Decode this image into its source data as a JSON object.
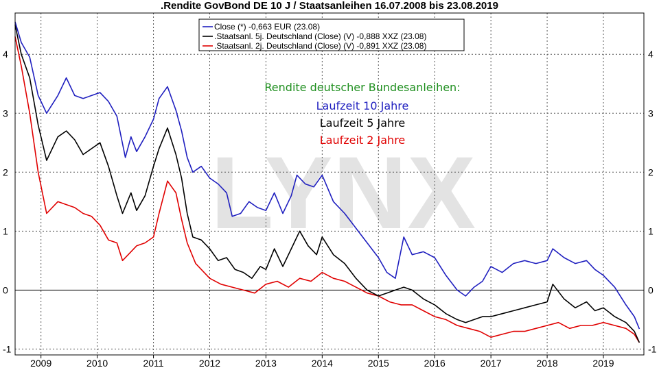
{
  "chart_data": {
    "type": "line",
    "title": ".Rendite GovBond DE 10 J / Staatsanleihen 16.07.2008 bis 23.08.2019",
    "xlabel": "",
    "ylabel": "",
    "xlim": [
      2008.54,
      2019.72
    ],
    "ylim": [
      -1.1,
      4.7
    ],
    "x_ticks": [
      2009,
      2010,
      2011,
      2012,
      2013,
      2014,
      2015,
      2016,
      2017,
      2018,
      2019
    ],
    "y_ticks": [
      4,
      3,
      2,
      1,
      0,
      -1
    ],
    "grid": true,
    "grid_style": "dashed",
    "zero_line": true,
    "legend_position": "top-center",
    "watermark": "LYNX",
    "colors": {
      "blue": "#1f1fbf",
      "black": "#000000",
      "red": "#e00000",
      "green": "#1f8f1f",
      "watermark": "#e3e3e3"
    },
    "annotations": [
      {
        "text": "Rendite deutscher Bundesanleihen:",
        "color": "#1f8f1f"
      },
      {
        "text": "Laufzeit 10 Jahre",
        "color": "#1f1fbf"
      },
      {
        "text": "Laufzeit 5 Jahre",
        "color": "#000000"
      },
      {
        "text": "Laufzeit 2 Jahre",
        "color": "#e00000"
      }
    ],
    "series": [
      {
        "name": "Close (*) -0,663 EUR (23.08)",
        "color": "#1f1fbf",
        "x": [
          2008.54,
          2008.65,
          2008.8,
          2008.95,
          2009.1,
          2009.3,
          2009.45,
          2009.6,
          2009.75,
          2009.9,
          2010.05,
          2010.2,
          2010.35,
          2010.5,
          2010.6,
          2010.7,
          2010.85,
          2011.0,
          2011.1,
          2011.25,
          2011.4,
          2011.5,
          2011.6,
          2011.7,
          2011.85,
          2012.0,
          2012.15,
          2012.3,
          2012.4,
          2012.55,
          2012.7,
          2012.85,
          2013.0,
          2013.15,
          2013.3,
          2013.45,
          2013.55,
          2013.7,
          2013.85,
          2014.0,
          2014.2,
          2014.4,
          2014.6,
          2014.8,
          2015.0,
          2015.15,
          2015.3,
          2015.45,
          2015.6,
          2015.8,
          2016.0,
          2016.2,
          2016.4,
          2016.55,
          2016.7,
          2016.85,
          2017.0,
          2017.2,
          2017.4,
          2017.6,
          2017.8,
          2018.0,
          2018.1,
          2018.3,
          2018.5,
          2018.7,
          2018.85,
          2019.0,
          2019.2,
          2019.4,
          2019.55,
          2019.64
        ],
        "values": [
          4.55,
          4.2,
          3.95,
          3.3,
          3.0,
          3.3,
          3.6,
          3.3,
          3.25,
          3.3,
          3.35,
          3.2,
          2.95,
          2.25,
          2.6,
          2.35,
          2.6,
          2.9,
          3.25,
          3.45,
          3.05,
          2.7,
          2.25,
          2.0,
          2.1,
          1.9,
          1.8,
          1.65,
          1.25,
          1.3,
          1.5,
          1.4,
          1.35,
          1.65,
          1.3,
          1.6,
          1.95,
          1.8,
          1.75,
          1.95,
          1.5,
          1.3,
          1.05,
          0.8,
          0.55,
          0.3,
          0.2,
          0.9,
          0.6,
          0.65,
          0.55,
          0.25,
          0.0,
          -0.1,
          0.05,
          0.15,
          0.4,
          0.3,
          0.45,
          0.5,
          0.45,
          0.5,
          0.7,
          0.55,
          0.45,
          0.5,
          0.35,
          0.25,
          0.05,
          -0.25,
          -0.45,
          -0.66
        ]
      },
      {
        "name": ".Staatsanl. 5j. Deutschland (Close) (V) -0,888 XXZ (23.08)",
        "color": "#000000",
        "x": [
          2008.54,
          2008.65,
          2008.8,
          2008.95,
          2009.1,
          2009.3,
          2009.45,
          2009.6,
          2009.75,
          2009.9,
          2010.05,
          2010.2,
          2010.35,
          2010.45,
          2010.6,
          2010.7,
          2010.85,
          2011.0,
          2011.1,
          2011.25,
          2011.4,
          2011.5,
          2011.6,
          2011.7,
          2011.85,
          2012.0,
          2012.15,
          2012.3,
          2012.45,
          2012.6,
          2012.75,
          2012.9,
          2013.0,
          2013.15,
          2013.3,
          2013.5,
          2013.6,
          2013.75,
          2013.9,
          2014.0,
          2014.2,
          2014.4,
          2014.6,
          2014.8,
          2015.0,
          2015.15,
          2015.3,
          2015.45,
          2015.6,
          2015.8,
          2016.0,
          2016.2,
          2016.4,
          2016.55,
          2016.7,
          2016.85,
          2017.0,
          2017.2,
          2017.4,
          2017.6,
          2017.8,
          2018.0,
          2018.1,
          2018.3,
          2018.5,
          2018.7,
          2018.85,
          2019.0,
          2019.2,
          2019.4,
          2019.55,
          2019.64
        ],
        "values": [
          4.5,
          4.0,
          3.6,
          2.8,
          2.2,
          2.6,
          2.7,
          2.55,
          2.3,
          2.4,
          2.5,
          2.1,
          1.6,
          1.3,
          1.65,
          1.35,
          1.6,
          2.1,
          2.4,
          2.75,
          2.3,
          1.9,
          1.3,
          0.9,
          0.85,
          0.7,
          0.5,
          0.55,
          0.35,
          0.3,
          0.2,
          0.4,
          0.35,
          0.7,
          0.4,
          0.8,
          1.0,
          0.75,
          0.6,
          0.9,
          0.6,
          0.45,
          0.2,
          0.0,
          -0.1,
          -0.05,
          0.0,
          0.05,
          0.0,
          -0.15,
          -0.25,
          -0.4,
          -0.5,
          -0.55,
          -0.5,
          -0.45,
          -0.45,
          -0.4,
          -0.35,
          -0.3,
          -0.25,
          -0.2,
          0.1,
          -0.15,
          -0.3,
          -0.2,
          -0.35,
          -0.3,
          -0.45,
          -0.55,
          -0.7,
          -0.89
        ]
      },
      {
        "name": ".Staatsanl. 2j. Deutschland (Close) (V) -0,891 XXZ (23.08)",
        "color": "#e00000",
        "x": [
          2008.54,
          2008.65,
          2008.8,
          2008.95,
          2009.1,
          2009.3,
          2009.45,
          2009.6,
          2009.75,
          2009.9,
          2010.05,
          2010.2,
          2010.35,
          2010.45,
          2010.6,
          2010.7,
          2010.85,
          2011.0,
          2011.1,
          2011.25,
          2011.4,
          2011.5,
          2011.6,
          2011.75,
          2011.9,
          2012.0,
          2012.2,
          2012.4,
          2012.6,
          2012.8,
          2013.0,
          2013.2,
          2013.4,
          2013.6,
          2013.8,
          2014.0,
          2014.2,
          2014.4,
          2014.6,
          2014.8,
          2015.0,
          2015.2,
          2015.4,
          2015.6,
          2015.8,
          2016.0,
          2016.2,
          2016.4,
          2016.6,
          2016.8,
          2017.0,
          2017.2,
          2017.4,
          2017.6,
          2017.8,
          2018.0,
          2018.2,
          2018.4,
          2018.6,
          2018.8,
          2019.0,
          2019.2,
          2019.4,
          2019.55,
          2019.64
        ],
        "values": [
          4.3,
          3.8,
          3.0,
          2.0,
          1.3,
          1.5,
          1.45,
          1.4,
          1.3,
          1.25,
          1.1,
          0.85,
          0.8,
          0.5,
          0.65,
          0.75,
          0.8,
          0.9,
          1.3,
          1.85,
          1.65,
          1.2,
          0.8,
          0.45,
          0.3,
          0.2,
          0.1,
          0.05,
          0.0,
          -0.05,
          0.1,
          0.15,
          0.05,
          0.2,
          0.15,
          0.3,
          0.2,
          0.15,
          0.05,
          -0.05,
          -0.1,
          -0.2,
          -0.25,
          -0.25,
          -0.35,
          -0.45,
          -0.5,
          -0.6,
          -0.65,
          -0.7,
          -0.8,
          -0.75,
          -0.7,
          -0.7,
          -0.65,
          -0.6,
          -0.55,
          -0.65,
          -0.6,
          -0.6,
          -0.55,
          -0.6,
          -0.65,
          -0.75,
          -0.89
        ]
      }
    ]
  }
}
